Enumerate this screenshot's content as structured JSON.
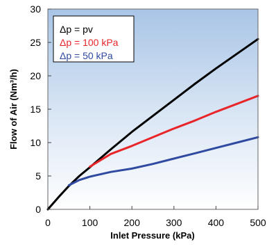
{
  "chart_data": {
    "type": "line",
    "xlabel": "Inlet Pressure (kPa)",
    "ylabel": "Flow of Air (Nm³/h)",
    "xlim": [
      0,
      500
    ],
    "ylim": [
      0,
      30
    ],
    "xticks": [
      0,
      100,
      200,
      300,
      400,
      500
    ],
    "yticks": [
      0,
      5,
      10,
      15,
      20,
      25,
      30
    ],
    "xtick_labels": [
      "0",
      "100",
      "200",
      "300",
      "400",
      "500"
    ],
    "ytick_labels": [
      "0",
      "5",
      "10",
      "15",
      "20",
      "25",
      "30"
    ],
    "grid": false,
    "legend_position": "top-left",
    "series": [
      {
        "name": "Δp = pv",
        "color": "#000000",
        "x": [
          0,
          25,
          50,
          75,
          100,
          150,
          200,
          250,
          300,
          350,
          400,
          450,
          500
        ],
        "y": [
          0,
          1.8,
          3.5,
          5.0,
          6.3,
          9.0,
          11.6,
          14.0,
          16.4,
          18.8,
          21.1,
          23.3,
          25.5
        ]
      },
      {
        "name": "Δp = 100 kPa",
        "color": "#e8262a",
        "x": [
          100,
          150,
          200,
          250,
          300,
          350,
          400,
          450,
          500
        ],
        "y": [
          6.4,
          8.3,
          9.5,
          10.8,
          12.1,
          13.3,
          14.6,
          15.8,
          17.0
        ]
      },
      {
        "name": "Δp = 50 kPa",
        "color": "#2f4aa0",
        "x": [
          50,
          75,
          100,
          150,
          200,
          250,
          300,
          350,
          400,
          450,
          500
        ],
        "y": [
          3.6,
          4.4,
          4.9,
          5.6,
          6.1,
          6.8,
          7.6,
          8.4,
          9.2,
          10.0,
          10.8
        ]
      }
    ]
  }
}
